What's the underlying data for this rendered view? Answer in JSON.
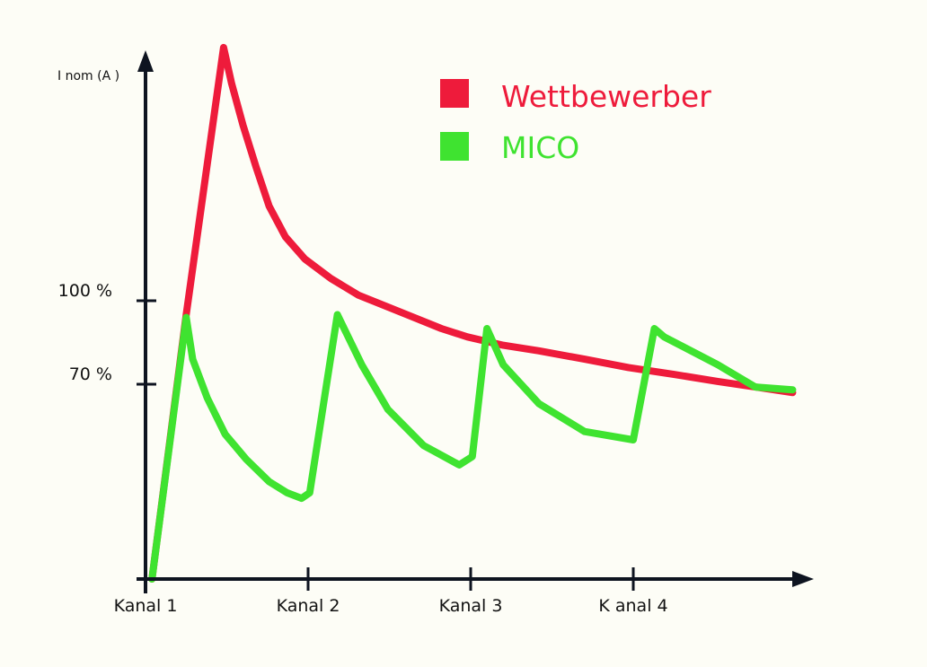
{
  "chart_data": {
    "type": "line",
    "title": "",
    "ylabel": "I nom   (A )",
    "xlabel": "",
    "x_ticks": [
      {
        "value": 1,
        "label": "Kanal  1"
      },
      {
        "value": 2,
        "label": "Kanal  2"
      },
      {
        "value": 3,
        "label": "Kanal  3"
      },
      {
        "value": 4,
        "label": "K anal  4"
      }
    ],
    "y_ticks": [
      {
        "value": 70,
        "label": "70 %"
      },
      {
        "value": 100,
        "label": "100 %"
      }
    ],
    "xlim": [
      1,
      5.1
    ],
    "ylim": [
      0,
      189
    ],
    "grid": false,
    "legend_position": "top-right",
    "series": [
      {
        "name": "Wettbewerber",
        "color": "#ee1b3b",
        "x": [
          1.04,
          1.25,
          1.48,
          1.53,
          1.6,
          1.68,
          1.76,
          1.86,
          1.98,
          2.14,
          2.31,
          2.48,
          2.65,
          2.82,
          2.98,
          3.2,
          3.42,
          3.7,
          3.97,
          4.25,
          4.52,
          4.75,
          4.98
        ],
        "y": [
          0,
          95,
          191,
          178,
          163,
          148,
          134,
          123,
          115,
          108,
          102,
          98,
          94,
          90,
          87,
          84,
          82,
          79,
          76,
          73.5,
          71,
          69,
          67
        ]
      },
      {
        "name": "MICO",
        "color": "#3fe330",
        "x": [
          1.04,
          1.25,
          1.29,
          1.38,
          1.49,
          1.62,
          1.76,
          1.87,
          1.96,
          2.01,
          2.18,
          2.33,
          2.49,
          2.71,
          2.93,
          3.01,
          3.1,
          3.2,
          3.42,
          3.7,
          4.0,
          4.13,
          4.19,
          4.52,
          4.75,
          4.98
        ],
        "y": [
          0,
          94,
          79,
          65,
          52,
          43,
          35,
          31,
          29,
          31,
          95,
          77,
          61,
          48,
          41,
          44,
          90,
          77,
          63,
          53,
          50,
          90,
          87,
          77,
          69,
          68
        ]
      }
    ]
  }
}
